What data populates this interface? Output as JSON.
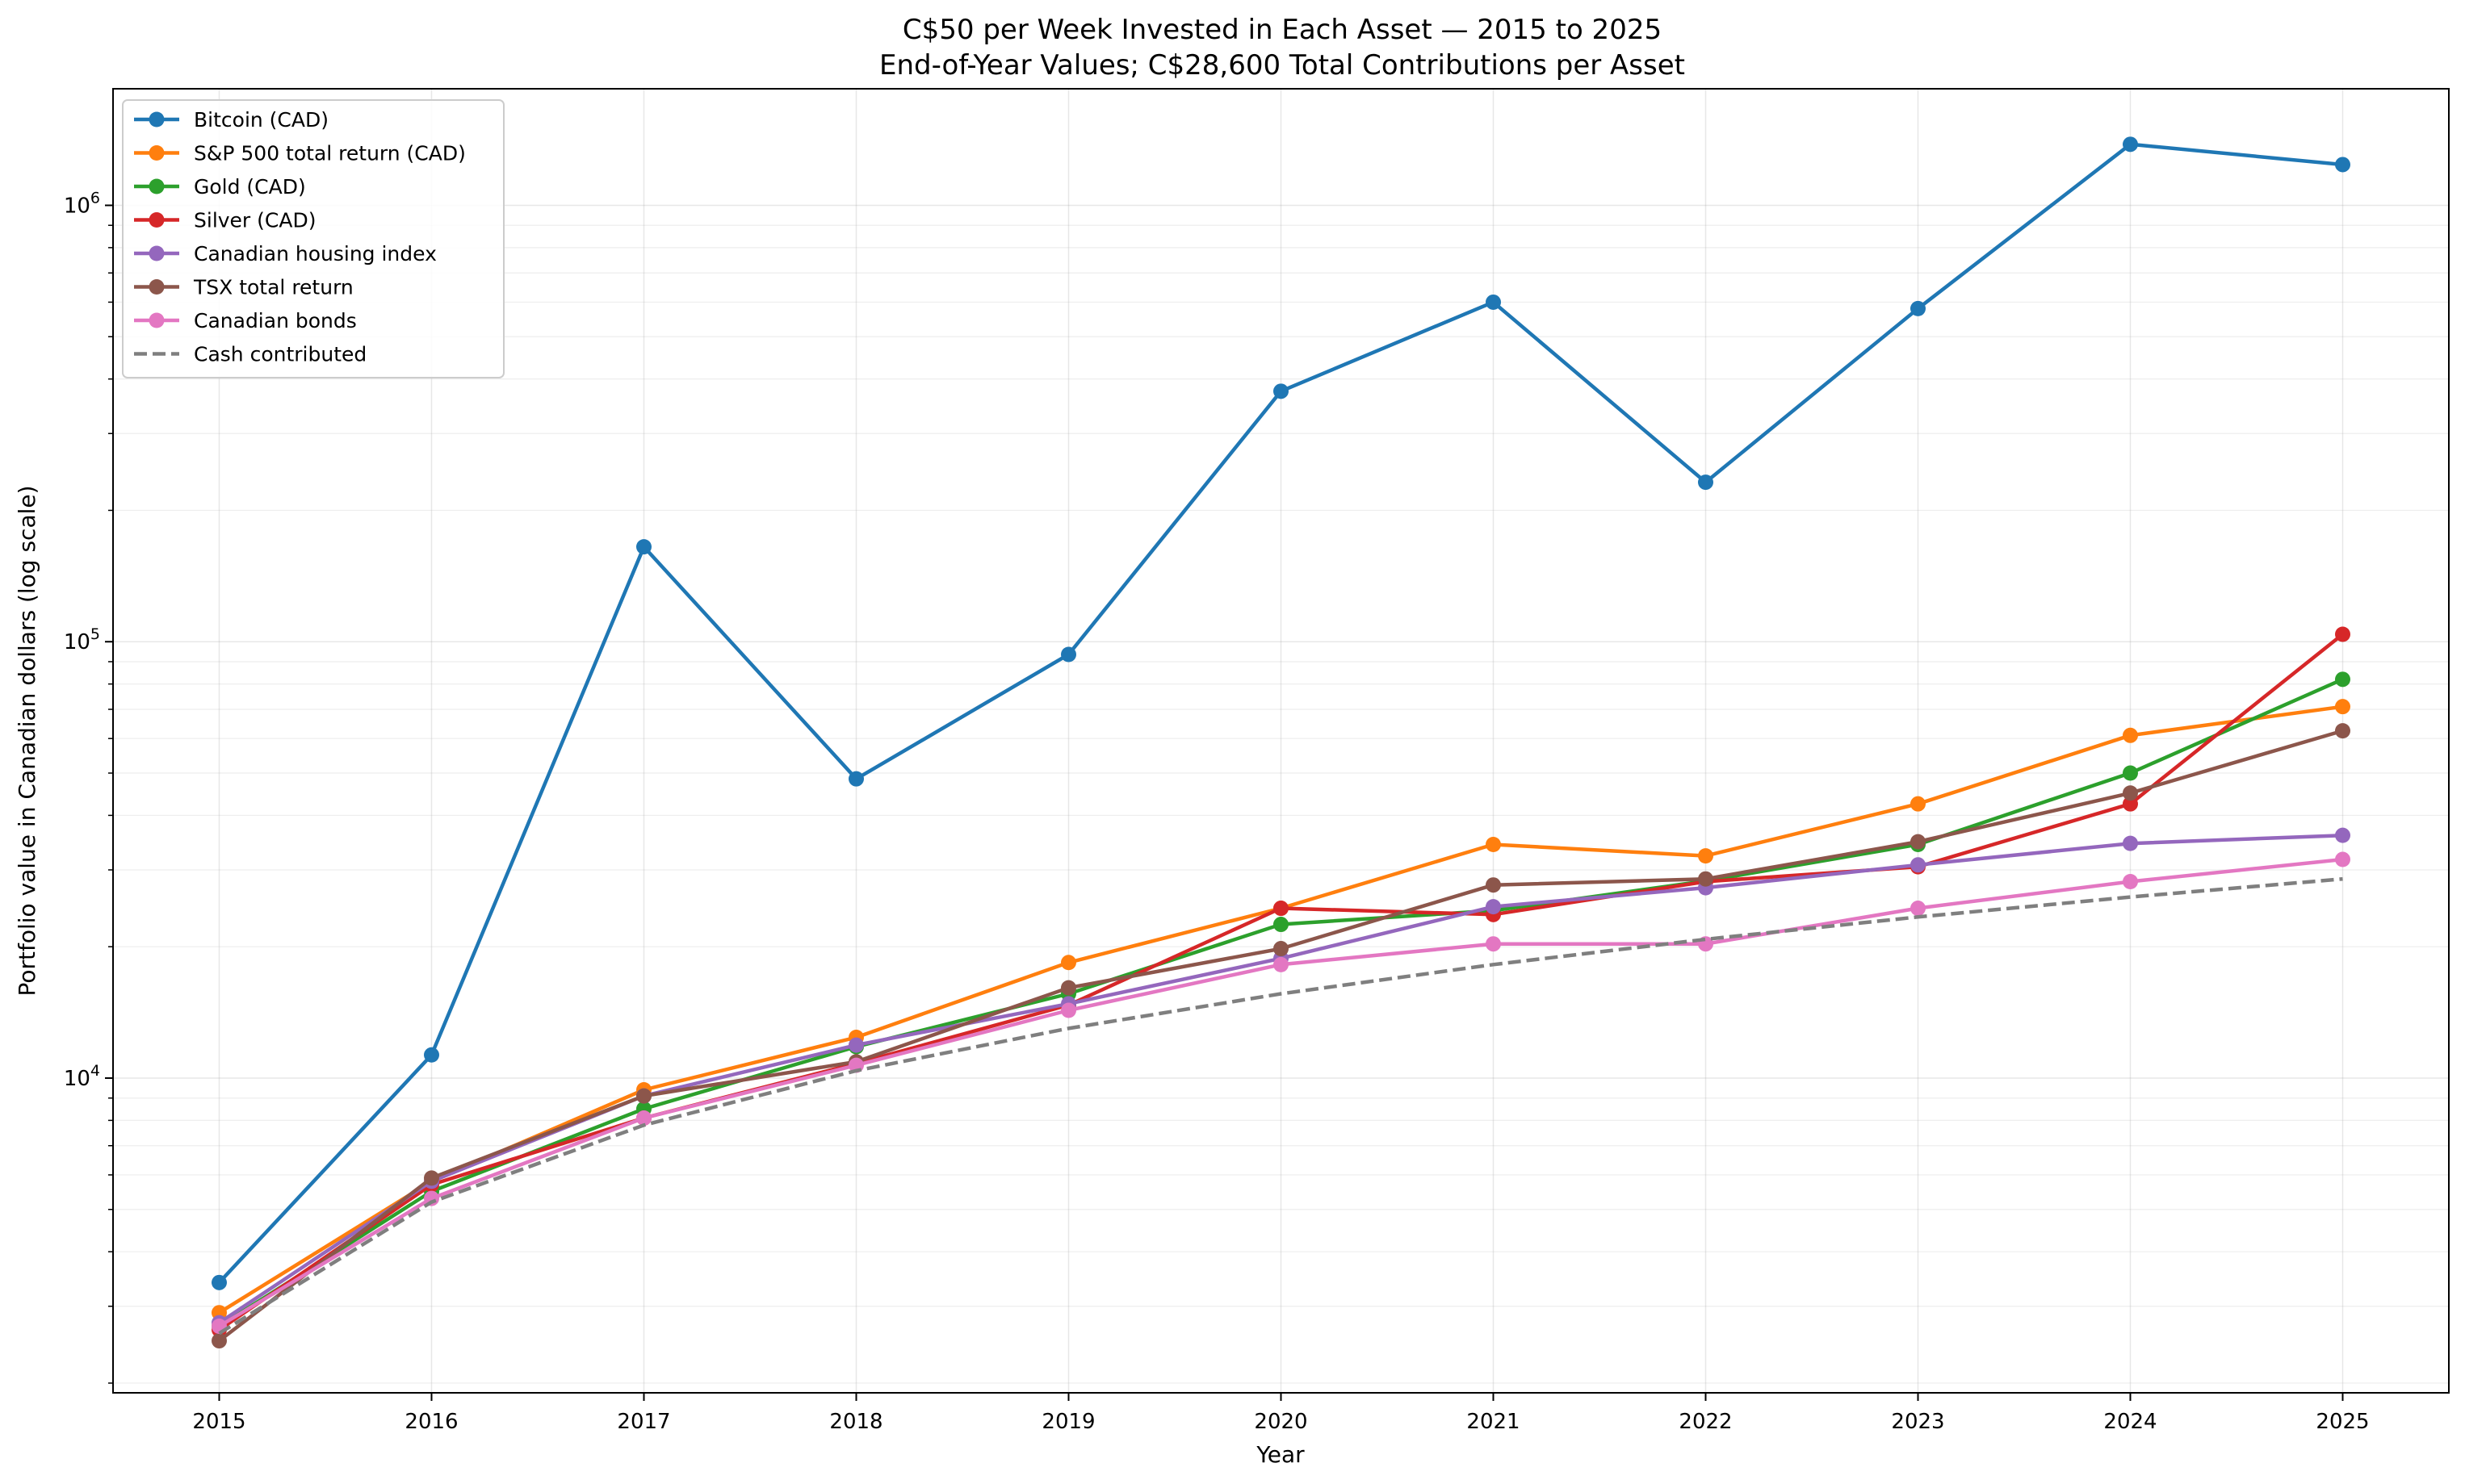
{
  "chart_data": {
    "type": "line",
    "title": "C$50 per Week Invested in Each Asset — 2015 to 2025",
    "subtitle": "End-of-Year Values; C$28,600 Total Contributions per Asset",
    "xlabel": "Year",
    "ylabel": "Portfolio value in Canadian dollars (log scale)",
    "yscale": "log",
    "xlim": [
      2014.5,
      2025.5
    ],
    "ylim": [
      1900,
      1850000
    ],
    "grid": true,
    "legend_position": "top-left",
    "x": [
      2015,
      2016,
      2017,
      2018,
      2019,
      2020,
      2021,
      2022,
      2023,
      2024,
      2025
    ],
    "x_tick_labels": [
      "2015",
      "2016",
      "2017",
      "2018",
      "2019",
      "2020",
      "2021",
      "2022",
      "2023",
      "2024",
      "2025"
    ],
    "y_major_ticks": [
      {
        "value": 10000,
        "base": "10",
        "exp": "4"
      },
      {
        "value": 100000,
        "base": "10",
        "exp": "5"
      },
      {
        "value": 1000000,
        "base": "10",
        "exp": "6"
      }
    ],
    "series": [
      {
        "name": "Bitcoin (CAD)",
        "color": "#1f77b4",
        "dashed": false,
        "markers": true,
        "values": [
          3400,
          11300,
          165000,
          48500,
          93500,
          375000,
          600000,
          232000,
          580000,
          1380000,
          1240000
        ]
      },
      {
        "name": "S&P 500 total return (CAD)",
        "color": "#ff7f0e",
        "dashed": false,
        "markers": true,
        "values": [
          2900,
          5800,
          9400,
          12400,
          18400,
          24500,
          34300,
          32300,
          42500,
          61000,
          71000
        ]
      },
      {
        "name": "Gold (CAD)",
        "color": "#2ca02c",
        "dashed": false,
        "markers": true,
        "values": [
          2700,
          5500,
          8500,
          11800,
          15600,
          22500,
          24200,
          28300,
          34300,
          50000,
          82000
        ]
      },
      {
        "name": "Silver (CAD)",
        "color": "#d62728",
        "dashed": false,
        "markers": true,
        "values": [
          2650,
          5700,
          8100,
          10800,
          14700,
          24500,
          23700,
          28200,
          30500,
          42500,
          104000
        ]
      },
      {
        "name": "Canadian housing index",
        "color": "#9467bd",
        "dashed": false,
        "markers": true,
        "values": [
          2750,
          5800,
          9100,
          11900,
          14800,
          18800,
          24700,
          27300,
          30800,
          34500,
          36000
        ]
      },
      {
        "name": "TSX total return",
        "color": "#8c564b",
        "dashed": false,
        "markers": true,
        "values": [
          2500,
          5900,
          9100,
          10900,
          16100,
          19800,
          27700,
          28600,
          34800,
          45000,
          62500
        ]
      },
      {
        "name": "Canadian bonds",
        "color": "#e377c2",
        "dashed": false,
        "markers": true,
        "values": [
          2700,
          5300,
          8100,
          10700,
          14300,
          18200,
          20300,
          20300,
          24500,
          28200,
          31700
        ]
      },
      {
        "name": "Cash contributed",
        "color": "#7f7f7f",
        "dashed": true,
        "markers": false,
        "values": [
          2600,
          5200,
          7800,
          10400,
          13000,
          15600,
          18200,
          20800,
          23400,
          26000,
          28600
        ]
      }
    ]
  }
}
